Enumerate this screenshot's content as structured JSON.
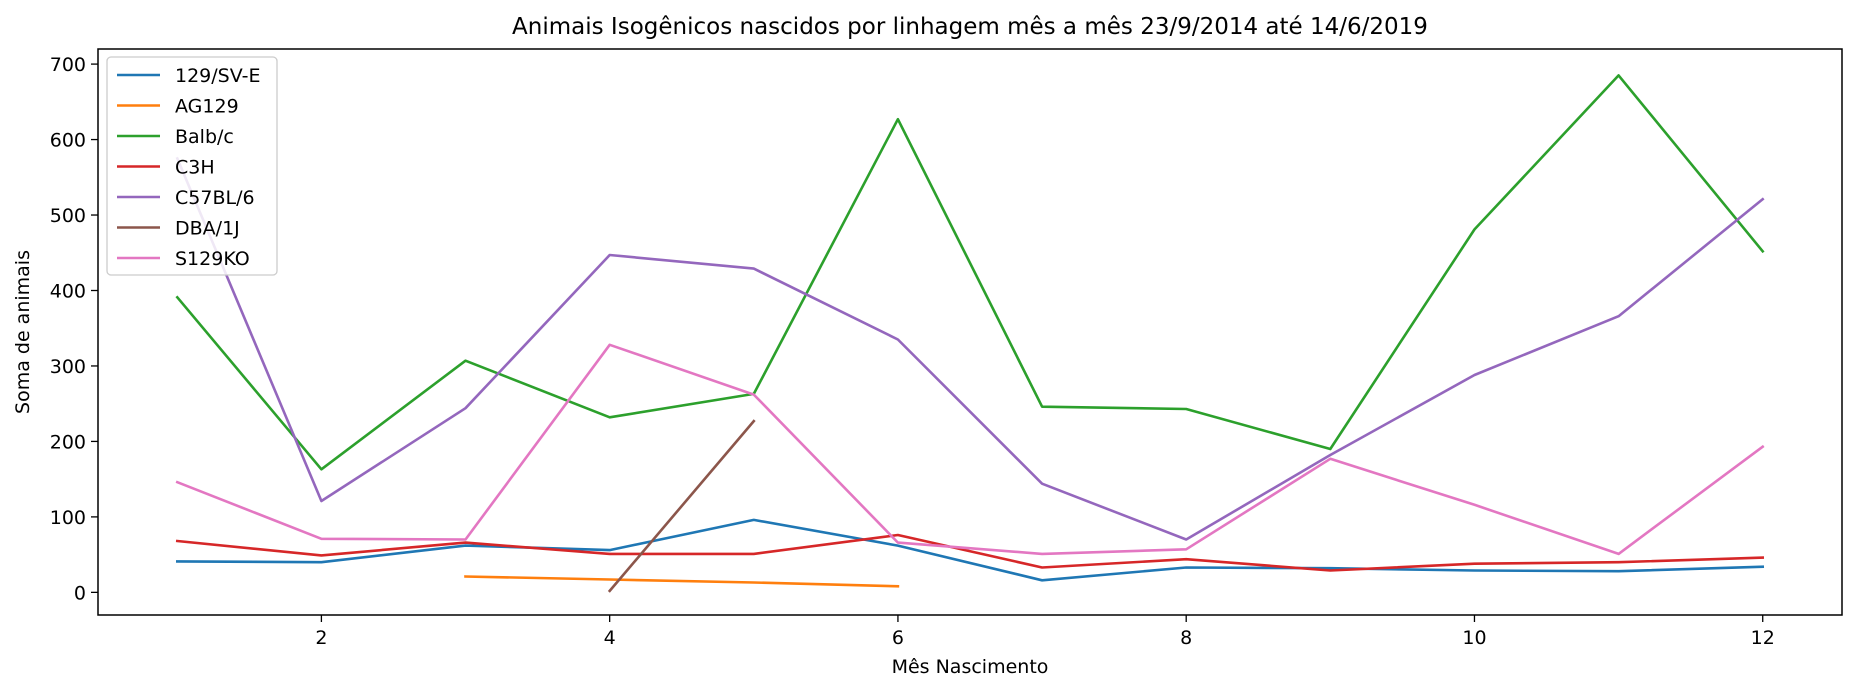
{
  "chart_data": {
    "type": "line",
    "title": "Animais Isogênicos nascidos por linhagem mês a mês 23/9/2014 até 14/6/2019",
    "xlabel": "Mês Nascimento",
    "ylabel": "Soma de animais",
    "xlim": [
      0.45,
      12.55
    ],
    "ylim": [
      -30,
      720
    ],
    "xticks": [
      2,
      4,
      6,
      8,
      10,
      12
    ],
    "yticks": [
      0,
      100,
      200,
      300,
      400,
      500,
      600,
      700
    ],
    "legend_position": "upper-left",
    "series": [
      {
        "name": "129/SV-E",
        "color": "#1f77b4",
        "x": [
          1,
          2,
          3,
          4,
          5,
          6,
          7,
          8,
          9,
          10,
          11,
          12
        ],
        "y": [
          41,
          40,
          62,
          56,
          96,
          62,
          16,
          33,
          32,
          29,
          28,
          34
        ]
      },
      {
        "name": "AG129",
        "color": "#ff7f0e",
        "x": [
          3,
          4,
          5,
          6
        ],
        "y": [
          21,
          17,
          13,
          8
        ]
      },
      {
        "name": "Balb/c",
        "color": "#2ca02c",
        "x": [
          1,
          2,
          3,
          4,
          5,
          6,
          7,
          8,
          9,
          10,
          11,
          12
        ],
        "y": [
          391,
          163,
          307,
          232,
          263,
          627,
          246,
          243,
          190,
          481,
          685,
          452
        ]
      },
      {
        "name": "C3H",
        "color": "#d62728",
        "x": [
          1,
          2,
          3,
          4,
          5,
          6,
          7,
          8,
          9,
          10,
          11,
          12
        ],
        "y": [
          68,
          49,
          66,
          51,
          51,
          76,
          33,
          44,
          29,
          38,
          40,
          46
        ]
      },
      {
        "name": "C57BL/6",
        "color": "#9467bd",
        "x": [
          1,
          2,
          3,
          4,
          5,
          6,
          7,
          8,
          9,
          10,
          11,
          12
        ],
        "y": [
          575,
          121,
          244,
          447,
          429,
          335,
          144,
          70,
          182,
          288,
          366,
          521
        ]
      },
      {
        "name": "DBA/1J",
        "color": "#8c564b",
        "x": [
          4,
          5
        ],
        "y": [
          2,
          227
        ]
      },
      {
        "name": "S129KO",
        "color": "#e377c2",
        "x": [
          1,
          2,
          3,
          4,
          5,
          6,
          7,
          8,
          9,
          10,
          11,
          12
        ],
        "y": [
          146,
          71,
          70,
          328,
          262,
          66,
          51,
          57,
          177,
          116,
          51,
          193
        ]
      }
    ]
  }
}
